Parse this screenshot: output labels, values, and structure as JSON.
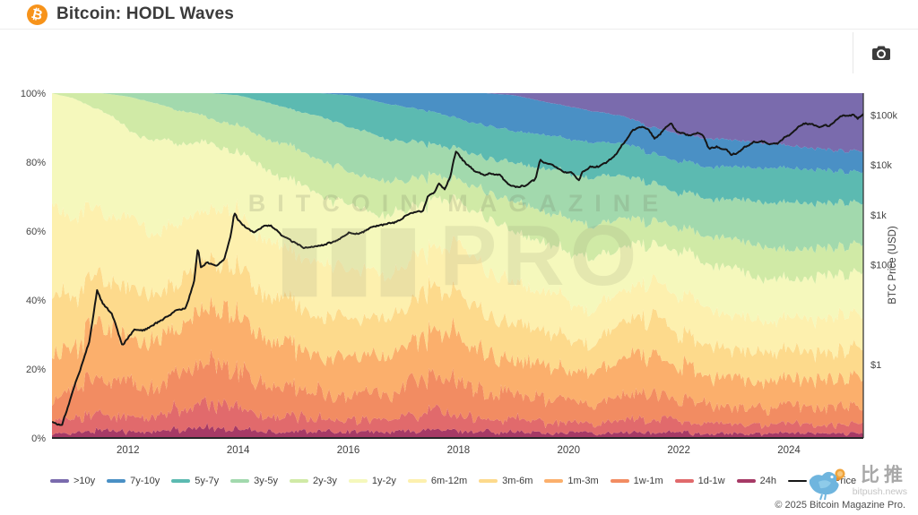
{
  "header": {
    "title": "Bitcoin: HODL Waves",
    "brand_color": "#f7931a",
    "logo_glyph": "₿"
  },
  "toolbar": {
    "camera_button": "screenshot"
  },
  "watermark": {
    "line1": "BITCOIN MAGAZINE",
    "line2": "PRO"
  },
  "footer": {
    "bitpush": {
      "cn": "比推",
      "domain": "bitpush.news"
    },
    "copyright": "© 2025 Bitcoin Magazine Pro."
  },
  "chart_data": {
    "type": "area",
    "stacked": true,
    "title": "Bitcoin: HODL Waves",
    "x_range": [
      2010.62,
      2025.35
    ],
    "x_ticks": [
      2012,
      2014,
      2016,
      2018,
      2020,
      2022,
      2024
    ],
    "left_axis": {
      "range": [
        0,
        100
      ],
      "ticks": [
        0,
        20,
        40,
        60,
        80,
        100
      ],
      "tick_suffix": "%"
    },
    "right_axis": {
      "label": "BTC Price (USD)",
      "scale": "log",
      "log_range": [
        -1.47,
        5.44
      ],
      "ticks": [
        {
          "label": "$100k",
          "value": 100000
        },
        {
          "label": "$10k",
          "value": 10000
        },
        {
          "label": "$1k",
          "value": 1000
        },
        {
          "label": "$100",
          "value": 100
        },
        {
          "label": "$1",
          "value": 1
        }
      ]
    },
    "grid": "faint-horizontal",
    "legend_position": "bottom",
    "sample_years": [
      2010.62,
      2011,
      2011.5,
      2012,
      2012.5,
      2013,
      2013.5,
      2014,
      2014.5,
      2015,
      2015.5,
      2016,
      2016.5,
      2017,
      2017.5,
      2018,
      2018.5,
      2019,
      2019.5,
      2020,
      2020.5,
      2021,
      2021.5,
      2022,
      2022.5,
      2023,
      2023.5,
      2024,
      2024.5,
      2025,
      2025.35
    ],
    "series": [
      {
        "name": ">10y",
        "color": "#7a6bad",
        "jitter": 0.01,
        "values": [
          0,
          0,
          0,
          0,
          0,
          0,
          0,
          0,
          0,
          0,
          0,
          0,
          0,
          0,
          0,
          0,
          0,
          0.5,
          2,
          3.5,
          5,
          6.5,
          9,
          10.5,
          12,
          13,
          14,
          15,
          16,
          16.5,
          17
        ]
      },
      {
        "name": "7y-10y",
        "color": "#4a90c5",
        "jitter": 0.01,
        "values": [
          0,
          0,
          0,
          0,
          0,
          0,
          0,
          0,
          0,
          0,
          0,
          0.5,
          2,
          3.5,
          4.5,
          6,
          7.5,
          9,
          8.5,
          8.5,
          8.5,
          7.5,
          7,
          7,
          7.5,
          7.5,
          7,
          6.5,
          6,
          6,
          6
        ]
      },
      {
        "name": "5y-7y",
        "color": "#5cbab1",
        "jitter": 0.02,
        "values": [
          0,
          0,
          0,
          0,
          0,
          0,
          0,
          0.5,
          2,
          4,
          5.5,
          7.5,
          8.5,
          9,
          8,
          7,
          7.5,
          8,
          8.5,
          9,
          9.5,
          9,
          8,
          8,
          8.5,
          9,
          9.5,
          10,
          9.5,
          9,
          9
        ]
      },
      {
        "name": "3y-5y",
        "color": "#a2d9ad",
        "jitter": 0.03,
        "values": [
          0,
          0,
          0,
          0.8,
          2.5,
          4.5,
          6,
          7,
          8,
          9,
          10,
          11,
          11,
          10,
          8,
          7,
          8,
          9.5,
          11,
          12,
          13,
          12,
          10,
          9,
          10,
          11,
          12.5,
          13.5,
          13,
          12.5,
          12
        ]
      },
      {
        "name": "2y-3y",
        "color": "#d0eaa6",
        "jitter": 0.05,
        "values": [
          0,
          1.5,
          4.5,
          8,
          9,
          8,
          6,
          6,
          7,
          8,
          8,
          8,
          8.5,
          8,
          6,
          5,
          6,
          7.5,
          8,
          8.5,
          9,
          8,
          6,
          6,
          7,
          8.5,
          9,
          8.5,
          8,
          8,
          8
        ]
      },
      {
        "name": "1y-2y",
        "color": "#f5f8bc",
        "jitter": 0.06,
        "values": [
          30,
          33,
          27,
          22,
          22,
          20,
          15,
          14,
          16,
          17,
          16,
          15,
          15,
          14,
          12,
          10,
          12,
          13,
          12,
          13,
          14,
          12,
          10,
          11,
          12,
          13,
          12,
          11,
          12,
          12,
          12
        ]
      },
      {
        "name": "6m-12m",
        "color": "#fdf0ae",
        "jitter": 0.1,
        "values": [
          28,
          22,
          18,
          16,
          15,
          14,
          12,
          13,
          12,
          12,
          12,
          12,
          11,
          11,
          10,
          11,
          11,
          10,
          10,
          10,
          9,
          9,
          9,
          10,
          10,
          9.5,
          9,
          9,
          10,
          10,
          10
        ]
      },
      {
        "name": "3m-6m",
        "color": "#fdda8c",
        "jitter": 0.18,
        "values": [
          18,
          14,
          13,
          12,
          11,
          12,
          11,
          11,
          10,
          10,
          10,
          9,
          9,
          10,
          11,
          10,
          9,
          9,
          9,
          8,
          8,
          10,
          10,
          9,
          8,
          8,
          8,
          8.5,
          8,
          8,
          8
        ]
      },
      {
        "name": "1m-3m",
        "color": "#fbaf6c",
        "jitter": 0.32,
        "values": [
          12,
          12,
          14,
          11,
          10,
          12,
          13,
          12,
          10,
          10,
          9,
          9,
          9,
          10,
          12,
          11,
          9,
          9,
          9,
          8,
          8,
          10,
          11,
          9,
          8,
          8,
          8,
          8,
          8,
          8,
          8
        ]
      },
      {
        "name": "1w-1m",
        "color": "#f28c62",
        "jitter": 0.4,
        "values": [
          6,
          8,
          10,
          8,
          7,
          10,
          11,
          9,
          7,
          7,
          6,
          6,
          6,
          7,
          9,
          8,
          6,
          6.5,
          6,
          5.5,
          5,
          7,
          7,
          6,
          5,
          5,
          5,
          5.5,
          5,
          5,
          5
        ]
      },
      {
        "name": "1d-1w",
        "color": "#e16a6c",
        "jitter": 0.45,
        "values": [
          3,
          4,
          5,
          4,
          3.5,
          5,
          6,
          4.5,
          3.5,
          3.5,
          3,
          3,
          3,
          3.5,
          4.5,
          4,
          3,
          3,
          3,
          2.5,
          2.5,
          3.5,
          3.5,
          3,
          2.5,
          2.5,
          2.5,
          3,
          2.5,
          2.5,
          2.5
        ]
      },
      {
        "name": "24h",
        "color": "#a63a66",
        "jitter": 0.6,
        "values": [
          1,
          1.5,
          2.5,
          1.5,
          1.5,
          2,
          2.5,
          2,
          1.5,
          1.5,
          1.5,
          1.5,
          1.5,
          1.5,
          2,
          1.5,
          1.5,
          1.5,
          1.5,
          1.5,
          1.2,
          1.5,
          1.5,
          1.5,
          1.2,
          1.2,
          1.2,
          1.5,
          1.2,
          1.2,
          1.2
        ]
      }
    ],
    "price_line": {
      "name": "BTC Price",
      "color": "#161616",
      "x": [
        2010.62,
        2010.8,
        2011.0,
        2011.15,
        2011.3,
        2011.44,
        2011.55,
        2011.7,
        2011.9,
        2012.1,
        2012.3,
        2012.5,
        2012.7,
        2012.9,
        2013.05,
        2013.2,
        2013.27,
        2013.32,
        2013.45,
        2013.6,
        2013.75,
        2013.87,
        2013.93,
        2014.0,
        2014.15,
        2014.3,
        2014.45,
        2014.6,
        2014.8,
        2015.05,
        2015.2,
        2015.4,
        2015.6,
        2015.8,
        2016.0,
        2016.2,
        2016.45,
        2016.7,
        2016.9,
        2017.05,
        2017.2,
        2017.35,
        2017.45,
        2017.55,
        2017.65,
        2017.75,
        2017.85,
        2017.95,
        2018.05,
        2018.15,
        2018.3,
        2018.45,
        2018.6,
        2018.75,
        2018.87,
        2018.95,
        2019.1,
        2019.25,
        2019.4,
        2019.48,
        2019.6,
        2019.75,
        2019.9,
        2020.05,
        2020.19,
        2020.24,
        2020.4,
        2020.55,
        2020.7,
        2020.85,
        2020.95,
        2021.05,
        2021.15,
        2021.27,
        2021.35,
        2021.45,
        2021.55,
        2021.65,
        2021.78,
        2021.86,
        2021.95,
        2022.05,
        2022.2,
        2022.35,
        2022.45,
        2022.55,
        2022.7,
        2022.8,
        2022.87,
        2022.95,
        2023.05,
        2023.2,
        2023.35,
        2023.5,
        2023.65,
        2023.8,
        2023.95,
        2024.05,
        2024.2,
        2024.3,
        2024.45,
        2024.55,
        2024.65,
        2024.75,
        2024.87,
        2024.95,
        2025.05,
        2025.15,
        2025.25,
        2025.35
      ],
      "usd": [
        0.07,
        0.06,
        0.3,
        0.9,
        3,
        31,
        16,
        11,
        2.4,
        4.9,
        4.9,
        6.6,
        9,
        12.5,
        13.5,
        47,
        230,
        90,
        110,
        95,
        130,
        420,
        1130,
        780,
        550,
        450,
        590,
        620,
        380,
        270,
        215,
        235,
        260,
        310,
        430,
        420,
        580,
        660,
        740,
        990,
        1120,
        1180,
        2400,
        2700,
        4300,
        3200,
        5800,
        19200,
        13500,
        10500,
        7500,
        6400,
        6700,
        6400,
        4500,
        3800,
        3600,
        4000,
        5300,
        12500,
        10800,
        9500,
        7300,
        7200,
        4900,
        6900,
        9200,
        9400,
        11500,
        16000,
        23000,
        33000,
        48000,
        58000,
        57000,
        52000,
        34000,
        40000,
        61000,
        67000,
        48000,
        43500,
        39000,
        45000,
        38000,
        21000,
        23500,
        19800,
        20500,
        16200,
        17000,
        23000,
        28500,
        30000,
        26500,
        27500,
        37500,
        43500,
        62000,
        68000,
        64000,
        58000,
        61500,
        63000,
        80000,
        97000,
        96000,
        102000,
        86000,
        102000
      ]
    }
  }
}
